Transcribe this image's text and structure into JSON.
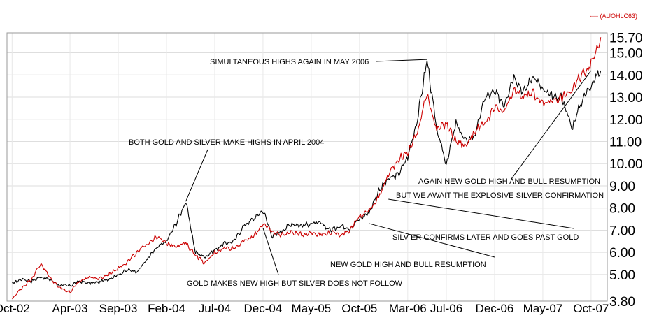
{
  "chart_data": {
    "type": "line",
    "legend": {
      "label": "---- (AUOHLC63)",
      "position": "top-right",
      "color": "#cc0000"
    },
    "ylim": [
      3.8,
      15.9
    ],
    "y_ticks": [
      "3.80",
      "5.00",
      "6.00",
      "7.00",
      "8.00",
      "9.00",
      "10.00",
      "11.00",
      "12.00",
      "13.00",
      "14.00",
      "15.00",
      "15.70"
    ],
    "x_ticks": [
      "Oct-02",
      "Apr-03",
      "Sep-03",
      "Feb-04",
      "Jul-04",
      "Dec-04",
      "May-05",
      "Oct-05",
      "Mar-06",
      "Jul-06",
      "Dec-06",
      "May-07",
      "Oct-07"
    ],
    "grid": true,
    "series": [
      {
        "color": "#000000",
        "points": [
          [
            "Oct-02",
            4.6
          ],
          [
            "Nov-02",
            4.8
          ],
          [
            "Dec-02",
            4.7
          ],
          [
            "Jan-03",
            4.9
          ],
          [
            "Feb-03",
            4.75
          ],
          [
            "Mar-03",
            4.5
          ],
          [
            "Apr-03",
            4.5
          ],
          [
            "May-03",
            4.7
          ],
          [
            "Jun-03",
            4.6
          ],
          [
            "Jul-03",
            4.65
          ],
          [
            "Aug-03",
            4.8
          ],
          [
            "Sep-03",
            5.0
          ],
          [
            "Oct-03",
            5.2
          ],
          [
            "Nov-03",
            5.15
          ],
          [
            "Dec-03",
            5.7
          ],
          [
            "Jan-04",
            6.2
          ],
          [
            "Feb-04",
            6.5
          ],
          [
            "Mar-04",
            7.3
          ],
          [
            "Apr-04",
            8.3
          ],
          [
            "May-04",
            6.0
          ],
          [
            "Jun-04",
            5.8
          ],
          [
            "Jul-04",
            6.1
          ],
          [
            "Aug-04",
            6.4
          ],
          [
            "Sep-04",
            6.5
          ],
          [
            "Oct-04",
            7.2
          ],
          [
            "Nov-04",
            7.5
          ],
          [
            "Dec-04",
            7.9
          ],
          [
            "Jan-05",
            6.7
          ],
          [
            "Feb-05",
            7.0
          ],
          [
            "Mar-05",
            7.3
          ],
          [
            "Apr-05",
            7.2
          ],
          [
            "May-05",
            7.3
          ],
          [
            "Jun-05",
            7.3
          ],
          [
            "Jul-05",
            7.0
          ],
          [
            "Aug-05",
            7.2
          ],
          [
            "Sep-05",
            7.1
          ],
          [
            "Oct-05",
            7.5
          ],
          [
            "Nov-05",
            7.8
          ],
          [
            "Dec-05",
            8.8
          ],
          [
            "Jan-06",
            9.3
          ],
          [
            "Feb-06",
            9.5
          ],
          [
            "Mar-06",
            10.3
          ],
          [
            "Apr-06",
            12.0
          ],
          [
            "May-06",
            14.7
          ],
          [
            "Jun-06",
            11.5
          ],
          [
            "Jul-06",
            10.0
          ],
          [
            "Aug-06",
            11.8
          ],
          [
            "Sep-06",
            11.0
          ],
          [
            "Oct-06",
            11.3
          ],
          [
            "Nov-06",
            13.0
          ],
          [
            "Dec-06",
            13.2
          ],
          [
            "Jan-07",
            12.7
          ],
          [
            "Feb-07",
            14.0
          ],
          [
            "Mar-07",
            13.2
          ],
          [
            "Apr-07",
            14.0
          ],
          [
            "May-07",
            13.3
          ],
          [
            "Jun-07",
            13.0
          ],
          [
            "Jul-07",
            13.0
          ],
          [
            "Aug-07",
            11.6
          ],
          [
            "Sep-07",
            12.8
          ],
          [
            "Oct-07",
            13.6
          ],
          [
            "Nov-07",
            14.2
          ]
        ]
      },
      {
        "color": "#cc0000",
        "points": [
          [
            "Oct-02",
            3.9
          ],
          [
            "Nov-02",
            4.4
          ],
          [
            "Dec-02",
            4.8
          ],
          [
            "Jan-03",
            5.5
          ],
          [
            "Feb-03",
            4.8
          ],
          [
            "Mar-03",
            4.4
          ],
          [
            "Apr-03",
            4.2
          ],
          [
            "May-03",
            4.7
          ],
          [
            "Jun-03",
            4.9
          ],
          [
            "Jul-03",
            4.8
          ],
          [
            "Aug-03",
            5.0
          ],
          [
            "Sep-03",
            5.3
          ],
          [
            "Oct-03",
            5.6
          ],
          [
            "Nov-03",
            6.0
          ],
          [
            "Dec-03",
            6.4
          ],
          [
            "Jan-04",
            6.7
          ],
          [
            "Feb-04",
            6.4
          ],
          [
            "Mar-04",
            6.3
          ],
          [
            "Apr-04",
            6.4
          ],
          [
            "May-04",
            5.9
          ],
          [
            "Jun-04",
            5.5
          ],
          [
            "Jul-04",
            6.0
          ],
          [
            "Aug-04",
            6.2
          ],
          [
            "Sep-04",
            6.2
          ],
          [
            "Oct-04",
            6.5
          ],
          [
            "Nov-04",
            6.7
          ],
          [
            "Dec-04",
            7.3
          ],
          [
            "Jan-05",
            6.9
          ],
          [
            "Feb-05",
            6.8
          ],
          [
            "Mar-05",
            6.9
          ],
          [
            "Apr-05",
            6.8
          ],
          [
            "May-05",
            6.9
          ],
          [
            "Jun-05",
            6.8
          ],
          [
            "Jul-05",
            6.9
          ],
          [
            "Aug-05",
            6.8
          ],
          [
            "Sep-05",
            7.0
          ],
          [
            "Oct-05",
            7.6
          ],
          [
            "Nov-05",
            7.9
          ],
          [
            "Dec-05",
            8.5
          ],
          [
            "Jan-06",
            9.5
          ],
          [
            "Feb-06",
            10.2
          ],
          [
            "Mar-06",
            10.5
          ],
          [
            "Apr-06",
            11.4
          ],
          [
            "May-06",
            13.2
          ],
          [
            "Jun-06",
            11.5
          ],
          [
            "Jul-06",
            11.8
          ],
          [
            "Aug-06",
            11.0
          ],
          [
            "Sep-06",
            10.8
          ],
          [
            "Oct-06",
            11.5
          ],
          [
            "Nov-06",
            11.8
          ],
          [
            "Dec-06",
            12.5
          ],
          [
            "Jan-07",
            12.3
          ],
          [
            "Feb-07",
            13.3
          ],
          [
            "Mar-07",
            13.0
          ],
          [
            "Apr-07",
            13.2
          ],
          [
            "May-07",
            12.7
          ],
          [
            "Jun-07",
            12.9
          ],
          [
            "Jul-07",
            13.0
          ],
          [
            "Aug-07",
            13.3
          ],
          [
            "Sep-07",
            14.0
          ],
          [
            "Oct-07",
            14.5
          ],
          [
            "Nov-07",
            15.7
          ]
        ]
      }
    ],
    "annotations": [
      {
        "text": "SIMULTANEOUS HIGHS AGAIN IN MAY 2006",
        "pointer": [
          "May-06",
          14.7
        ]
      },
      {
        "text": "BOTH GOLD AND SILVER MAKE HIGHS IN APRIL 2004",
        "pointer": [
          "Apr-04",
          8.3
        ]
      },
      {
        "text": "AGAIN NEW GOLD HIGH AND BULL RESUMPTION",
        "pointer": [
          "Oct-07",
          14.2
        ]
      },
      {
        "text": "BUT WE AWAIT THE EXPLOSIVE SILVER CONFIRMATION",
        "pointer": null
      },
      {
        "text": "SILV ER CONFIRMS LATER AND GOES PAST GOLD",
        "pointer": [
          "Jan-06",
          8.4
        ]
      },
      {
        "text": "NEW GOLD HIGH AND BULL RESUMPTION",
        "pointer": [
          "Nov-05",
          7.3
        ]
      },
      {
        "text": "GOLD MAKES NEW HIGH BUT SILVER DOES NOT FOLLOW",
        "pointer": [
          "Dec-04",
          7.1
        ]
      }
    ]
  }
}
